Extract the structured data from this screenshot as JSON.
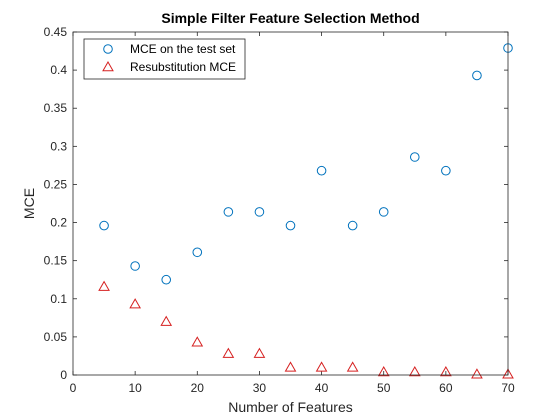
{
  "chart_data": {
    "type": "scatter",
    "title": "Simple Filter Feature Selection Method",
    "xlabel": "Number of Features",
    "ylabel": "MCE",
    "xlim": [
      0,
      70
    ],
    "ylim": [
      0,
      0.45
    ],
    "xticks": [
      0,
      10,
      20,
      30,
      40,
      50,
      60,
      70
    ],
    "yticks": [
      0,
      0.05,
      0.1,
      0.15,
      0.2,
      0.25,
      0.3,
      0.35,
      0.4,
      0.45
    ],
    "xtick_labels": [
      "0",
      "10",
      "20",
      "30",
      "40",
      "50",
      "60",
      "70"
    ],
    "ytick_labels": [
      "0",
      "0.05",
      "0.1",
      "0.15",
      "0.2",
      "0.25",
      "0.3",
      "0.35",
      "0.4",
      "0.45"
    ],
    "grid": false,
    "legend_position": "top-left",
    "series": [
      {
        "name": "MCE on the test set",
        "marker": "circle",
        "color": "#0072BD",
        "x": [
          5,
          10,
          15,
          20,
          25,
          30,
          35,
          40,
          45,
          50,
          55,
          60,
          65,
          70
        ],
        "y": [
          0.196,
          0.143,
          0.125,
          0.161,
          0.214,
          0.214,
          0.196,
          0.268,
          0.196,
          0.214,
          0.286,
          0.268,
          0.393,
          0.429
        ]
      },
      {
        "name": "Resubstitution MCE",
        "marker": "triangle",
        "color": "#D62020",
        "x": [
          5,
          10,
          15,
          20,
          25,
          30,
          35,
          40,
          45,
          50,
          55,
          60,
          65,
          70
        ],
        "y": [
          0.116,
          0.093,
          0.07,
          0.043,
          0.028,
          0.028,
          0.01,
          0.01,
          0.01,
          0.004,
          0.004,
          0.004,
          0.001,
          0.001
        ]
      }
    ]
  }
}
